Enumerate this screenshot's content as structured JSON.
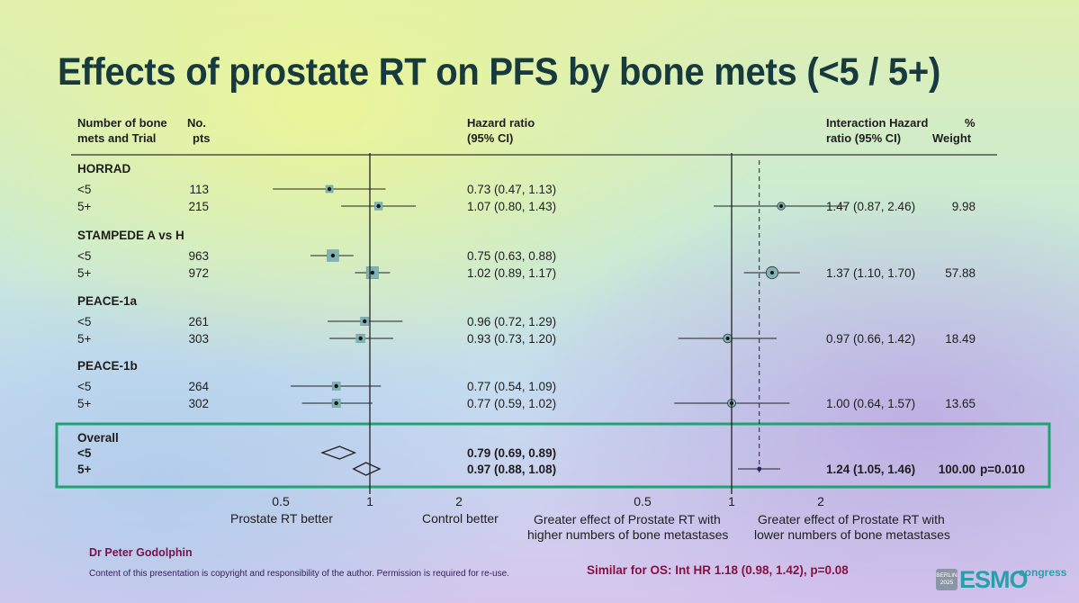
{
  "title": "Effects of prostate RT on PFS by bone mets (<5 / 5+)",
  "headers": {
    "group_line1": "Number of bone",
    "group_line2": "mets and Trial",
    "pts_line1": "No.",
    "pts_line2": "pts",
    "hr_line1": "Hazard ratio",
    "hr_line2": "(95% CI)",
    "int_line1": "Interaction Hazard",
    "int_line2": "ratio (95% CI)",
    "wt_line1": "%",
    "wt_line2": "Weight"
  },
  "axis_labels": {
    "left_ticks": [
      "0.5",
      "1",
      "2"
    ],
    "right_ticks": [
      "0.5",
      "1",
      "2"
    ],
    "left_low": "Prostate RT better",
    "left_high": "Control better",
    "right_low_1": "Greater effect of Prostate RT with",
    "right_low_2": "higher numbers of bone metastases",
    "right_high_1": "Greater effect of Prostate RT with",
    "right_high_2": "lower numbers of bone metastases"
  },
  "chart_data": {
    "type": "forest",
    "scale": "log",
    "xlim": [
      0.4,
      2.7
    ],
    "reference_line": 1,
    "trials": [
      {
        "name": "HORRAD",
        "rows": [
          {
            "label": "<5",
            "n": "113",
            "hr": 0.73,
            "lo": 0.47,
            "hi": 1.13,
            "text": "0.73 (0.47, 1.13)",
            "weight_box": 1
          },
          {
            "label": "5+",
            "n": "215",
            "hr": 1.07,
            "lo": 0.8,
            "hi": 1.43,
            "text": "1.07 (0.80, 1.43)",
            "weight_box": 1.2
          }
        ],
        "interaction": {
          "hr": 1.47,
          "lo": 0.87,
          "hi": 2.46,
          "text": "1.47 (0.87, 2.46)",
          "weight": "9.98"
        }
      },
      {
        "name": "STAMPEDE A vs H",
        "rows": [
          {
            "label": "<5",
            "n": "963",
            "hr": 0.75,
            "lo": 0.63,
            "hi": 0.88,
            "text": "0.75 (0.63, 0.88)",
            "weight_box": 2.6
          },
          {
            "label": "5+",
            "n": "972",
            "hr": 1.02,
            "lo": 0.89,
            "hi": 1.17,
            "text": "1.02 (0.89, 1.17)",
            "weight_box": 2.8
          }
        ],
        "interaction": {
          "hr": 1.37,
          "lo": 1.1,
          "hi": 1.7,
          "text": "1.37 (1.10, 1.70)",
          "weight": "57.88"
        }
      },
      {
        "name": "PEACE-1a",
        "rows": [
          {
            "label": "<5",
            "n": "261",
            "hr": 0.96,
            "lo": 0.72,
            "hi": 1.29,
            "text": "0.96 (0.72, 1.29)",
            "weight_box": 1.4
          },
          {
            "label": "5+",
            "n": "303",
            "hr": 0.93,
            "lo": 0.73,
            "hi": 1.2,
            "text": "0.93 (0.73, 1.20)",
            "weight_box": 1.5
          }
        ],
        "interaction": {
          "hr": 0.97,
          "lo": 0.66,
          "hi": 1.42,
          "text": "0.97 (0.66, 1.42)",
          "weight": "18.49"
        }
      },
      {
        "name": "PEACE-1b",
        "rows": [
          {
            "label": "<5",
            "n": "264",
            "hr": 0.77,
            "lo": 0.54,
            "hi": 1.09,
            "text": "0.77 (0.54, 1.09)",
            "weight_box": 1.3
          },
          {
            "label": "5+",
            "n": "302",
            "hr": 0.77,
            "lo": 0.59,
            "hi": 1.02,
            "text": "0.77 (0.59, 1.02)",
            "weight_box": 1.4
          }
        ],
        "interaction": {
          "hr": 1.0,
          "lo": 0.64,
          "hi": 1.57,
          "text": "1.00 (0.64, 1.57)",
          "weight": "13.65"
        }
      }
    ],
    "overall": {
      "name": "Overall",
      "rows": [
        {
          "label": "<5",
          "hr": 0.79,
          "lo": 0.69,
          "hi": 0.89,
          "text": "0.79 (0.69, 0.89)"
        },
        {
          "label": "5+",
          "hr": 0.97,
          "lo": 0.88,
          "hi": 1.08,
          "text": "0.97 (0.88, 1.08)"
        }
      ],
      "interaction": {
        "hr": 1.24,
        "lo": 1.05,
        "hi": 1.46,
        "text": "1.24 (1.05, 1.46)",
        "weight": "100.00",
        "p": "p=0.010"
      }
    }
  },
  "footer": {
    "author": "Dr Peter Godolphin",
    "copyright": "Content of this presentation is copyright and responsibility of the author. Permission is required for re-use.",
    "os_note": "Similar for OS: Int HR 1.18 (0.98, 1.42), p=0.08",
    "logo_city": "BERLIN",
    "logo_year": "2025",
    "logo_brand": "ESMO",
    "logo_suffix": "congress"
  },
  "colors": {
    "title": "#173a3f",
    "highlight_box": "#1fa372",
    "marker_fill": "#7fb3b5",
    "os_note": "#8b1040",
    "logo": "#2a9fa8"
  }
}
